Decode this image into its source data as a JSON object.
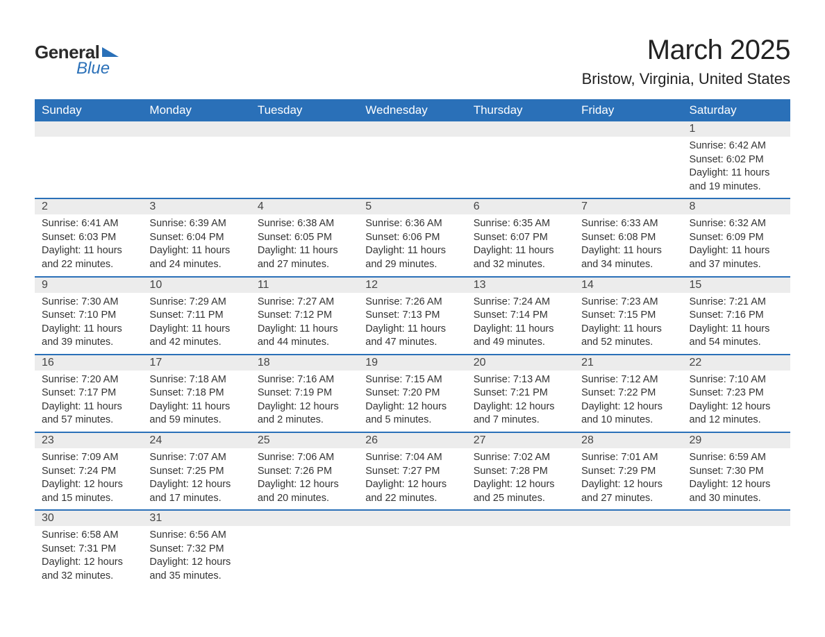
{
  "logo": {
    "text1": "General",
    "text2": "Blue"
  },
  "title": {
    "month": "March 2025",
    "location": "Bristow, Virginia, United States"
  },
  "colors": {
    "header_bg": "#2a70b8",
    "header_text": "#ffffff",
    "daynum_bg": "#ececec",
    "row_border": "#2a70b8",
    "body_text": "#333333",
    "logo_accent": "#2a70b8"
  },
  "typography": {
    "title_fontsize": 40,
    "location_fontsize": 22,
    "header_fontsize": 17,
    "daynum_fontsize": 16,
    "body_fontsize": 14.5
  },
  "columns": [
    "Sunday",
    "Monday",
    "Tuesday",
    "Wednesday",
    "Thursday",
    "Friday",
    "Saturday"
  ],
  "weeks": [
    [
      {
        "day": "",
        "sunrise": "",
        "sunset": "",
        "daylight": ""
      },
      {
        "day": "",
        "sunrise": "",
        "sunset": "",
        "daylight": ""
      },
      {
        "day": "",
        "sunrise": "",
        "sunset": "",
        "daylight": ""
      },
      {
        "day": "",
        "sunrise": "",
        "sunset": "",
        "daylight": ""
      },
      {
        "day": "",
        "sunrise": "",
        "sunset": "",
        "daylight": ""
      },
      {
        "day": "",
        "sunrise": "",
        "sunset": "",
        "daylight": ""
      },
      {
        "day": "1",
        "sunrise": "Sunrise: 6:42 AM",
        "sunset": "Sunset: 6:02 PM",
        "daylight": "Daylight: 11 hours and 19 minutes."
      }
    ],
    [
      {
        "day": "2",
        "sunrise": "Sunrise: 6:41 AM",
        "sunset": "Sunset: 6:03 PM",
        "daylight": "Daylight: 11 hours and 22 minutes."
      },
      {
        "day": "3",
        "sunrise": "Sunrise: 6:39 AM",
        "sunset": "Sunset: 6:04 PM",
        "daylight": "Daylight: 11 hours and 24 minutes."
      },
      {
        "day": "4",
        "sunrise": "Sunrise: 6:38 AM",
        "sunset": "Sunset: 6:05 PM",
        "daylight": "Daylight: 11 hours and 27 minutes."
      },
      {
        "day": "5",
        "sunrise": "Sunrise: 6:36 AM",
        "sunset": "Sunset: 6:06 PM",
        "daylight": "Daylight: 11 hours and 29 minutes."
      },
      {
        "day": "6",
        "sunrise": "Sunrise: 6:35 AM",
        "sunset": "Sunset: 6:07 PM",
        "daylight": "Daylight: 11 hours and 32 minutes."
      },
      {
        "day": "7",
        "sunrise": "Sunrise: 6:33 AM",
        "sunset": "Sunset: 6:08 PM",
        "daylight": "Daylight: 11 hours and 34 minutes."
      },
      {
        "day": "8",
        "sunrise": "Sunrise: 6:32 AM",
        "sunset": "Sunset: 6:09 PM",
        "daylight": "Daylight: 11 hours and 37 minutes."
      }
    ],
    [
      {
        "day": "9",
        "sunrise": "Sunrise: 7:30 AM",
        "sunset": "Sunset: 7:10 PM",
        "daylight": "Daylight: 11 hours and 39 minutes."
      },
      {
        "day": "10",
        "sunrise": "Sunrise: 7:29 AM",
        "sunset": "Sunset: 7:11 PM",
        "daylight": "Daylight: 11 hours and 42 minutes."
      },
      {
        "day": "11",
        "sunrise": "Sunrise: 7:27 AM",
        "sunset": "Sunset: 7:12 PM",
        "daylight": "Daylight: 11 hours and 44 minutes."
      },
      {
        "day": "12",
        "sunrise": "Sunrise: 7:26 AM",
        "sunset": "Sunset: 7:13 PM",
        "daylight": "Daylight: 11 hours and 47 minutes."
      },
      {
        "day": "13",
        "sunrise": "Sunrise: 7:24 AM",
        "sunset": "Sunset: 7:14 PM",
        "daylight": "Daylight: 11 hours and 49 minutes."
      },
      {
        "day": "14",
        "sunrise": "Sunrise: 7:23 AM",
        "sunset": "Sunset: 7:15 PM",
        "daylight": "Daylight: 11 hours and 52 minutes."
      },
      {
        "day": "15",
        "sunrise": "Sunrise: 7:21 AM",
        "sunset": "Sunset: 7:16 PM",
        "daylight": "Daylight: 11 hours and 54 minutes."
      }
    ],
    [
      {
        "day": "16",
        "sunrise": "Sunrise: 7:20 AM",
        "sunset": "Sunset: 7:17 PM",
        "daylight": "Daylight: 11 hours and 57 minutes."
      },
      {
        "day": "17",
        "sunrise": "Sunrise: 7:18 AM",
        "sunset": "Sunset: 7:18 PM",
        "daylight": "Daylight: 11 hours and 59 minutes."
      },
      {
        "day": "18",
        "sunrise": "Sunrise: 7:16 AM",
        "sunset": "Sunset: 7:19 PM",
        "daylight": "Daylight: 12 hours and 2 minutes."
      },
      {
        "day": "19",
        "sunrise": "Sunrise: 7:15 AM",
        "sunset": "Sunset: 7:20 PM",
        "daylight": "Daylight: 12 hours and 5 minutes."
      },
      {
        "day": "20",
        "sunrise": "Sunrise: 7:13 AM",
        "sunset": "Sunset: 7:21 PM",
        "daylight": "Daylight: 12 hours and 7 minutes."
      },
      {
        "day": "21",
        "sunrise": "Sunrise: 7:12 AM",
        "sunset": "Sunset: 7:22 PM",
        "daylight": "Daylight: 12 hours and 10 minutes."
      },
      {
        "day": "22",
        "sunrise": "Sunrise: 7:10 AM",
        "sunset": "Sunset: 7:23 PM",
        "daylight": "Daylight: 12 hours and 12 minutes."
      }
    ],
    [
      {
        "day": "23",
        "sunrise": "Sunrise: 7:09 AM",
        "sunset": "Sunset: 7:24 PM",
        "daylight": "Daylight: 12 hours and 15 minutes."
      },
      {
        "day": "24",
        "sunrise": "Sunrise: 7:07 AM",
        "sunset": "Sunset: 7:25 PM",
        "daylight": "Daylight: 12 hours and 17 minutes."
      },
      {
        "day": "25",
        "sunrise": "Sunrise: 7:06 AM",
        "sunset": "Sunset: 7:26 PM",
        "daylight": "Daylight: 12 hours and 20 minutes."
      },
      {
        "day": "26",
        "sunrise": "Sunrise: 7:04 AM",
        "sunset": "Sunset: 7:27 PM",
        "daylight": "Daylight: 12 hours and 22 minutes."
      },
      {
        "day": "27",
        "sunrise": "Sunrise: 7:02 AM",
        "sunset": "Sunset: 7:28 PM",
        "daylight": "Daylight: 12 hours and 25 minutes."
      },
      {
        "day": "28",
        "sunrise": "Sunrise: 7:01 AM",
        "sunset": "Sunset: 7:29 PM",
        "daylight": "Daylight: 12 hours and 27 minutes."
      },
      {
        "day": "29",
        "sunrise": "Sunrise: 6:59 AM",
        "sunset": "Sunset: 7:30 PM",
        "daylight": "Daylight: 12 hours and 30 minutes."
      }
    ],
    [
      {
        "day": "30",
        "sunrise": "Sunrise: 6:58 AM",
        "sunset": "Sunset: 7:31 PM",
        "daylight": "Daylight: 12 hours and 32 minutes."
      },
      {
        "day": "31",
        "sunrise": "Sunrise: 6:56 AM",
        "sunset": "Sunset: 7:32 PM",
        "daylight": "Daylight: 12 hours and 35 minutes."
      },
      {
        "day": "",
        "sunrise": "",
        "sunset": "",
        "daylight": ""
      },
      {
        "day": "",
        "sunrise": "",
        "sunset": "",
        "daylight": ""
      },
      {
        "day": "",
        "sunrise": "",
        "sunset": "",
        "daylight": ""
      },
      {
        "day": "",
        "sunrise": "",
        "sunset": "",
        "daylight": ""
      },
      {
        "day": "",
        "sunrise": "",
        "sunset": "",
        "daylight": ""
      }
    ]
  ]
}
